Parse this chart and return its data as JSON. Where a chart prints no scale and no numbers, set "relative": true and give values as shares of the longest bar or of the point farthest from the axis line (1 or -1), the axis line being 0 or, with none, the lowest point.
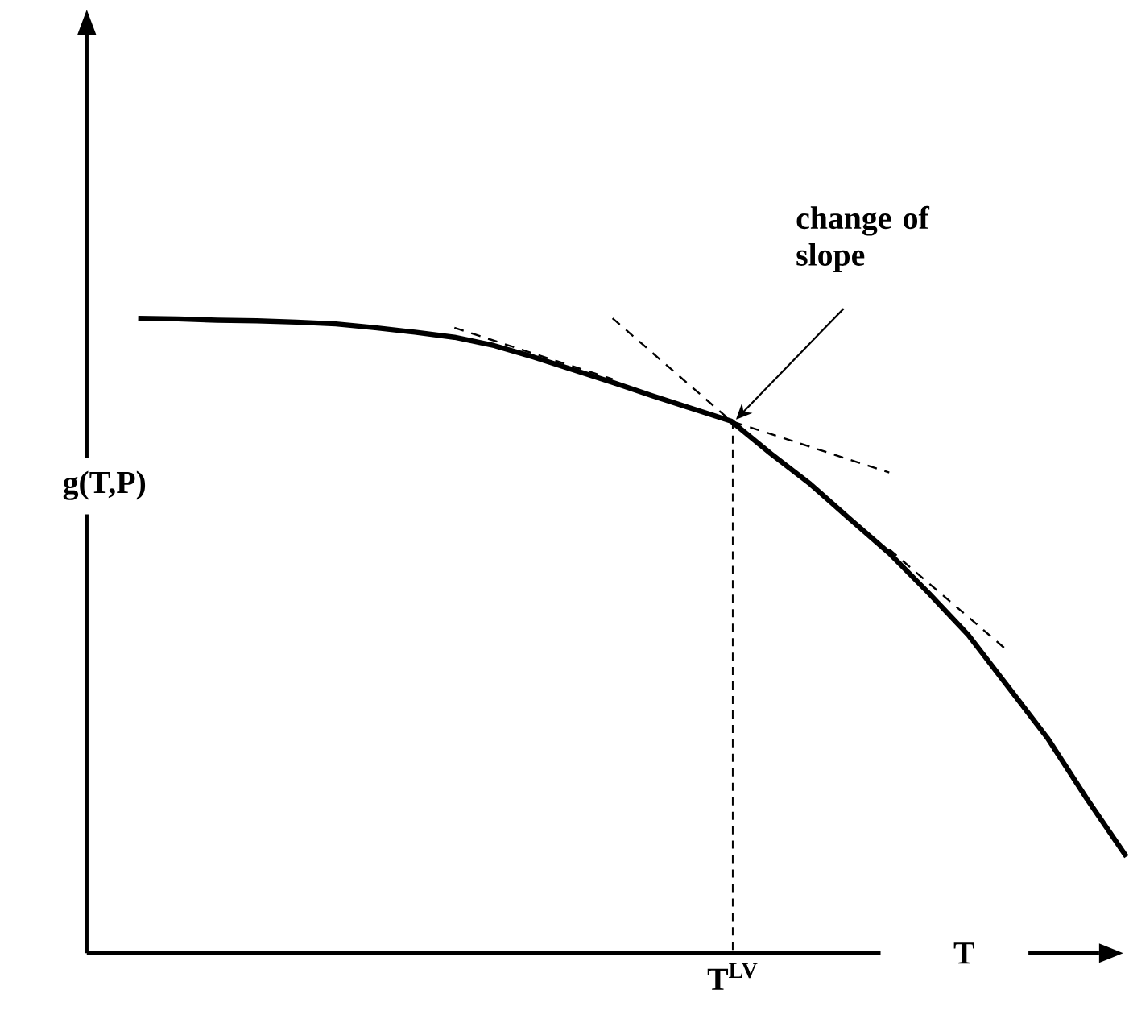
{
  "chart_data": {
    "type": "line",
    "relative": true,
    "xlabel": "T",
    "ylabel": "g(T,P)",
    "categories": [
      null,
      null,
      null,
      null,
      null,
      null,
      null,
      null,
      null,
      null,
      null,
      null,
      null,
      null,
      null,
      null,
      null,
      null,
      null,
      null,
      null,
      null,
      null,
      null,
      null,
      null
    ],
    "series": [
      {
        "color": "#000000",
        "line_style": "solid",
        "values": [
          1.0,
          0.999,
          0.997,
          0.996,
          0.994,
          0.991,
          0.985,
          0.978,
          0.97,
          0.957,
          0.939,
          0.919,
          0.899,
          0.878,
          0.858,
          0.838,
          0.787,
          0.739,
          0.684,
          0.63,
          0.567,
          0.501,
          0.42,
          0.339,
          0.243,
          0.152
        ]
      },
      {
        "color": "#000000",
        "line_style": "dashed",
        "values": [
          null,
          null,
          null,
          null,
          null,
          null,
          null,
          null,
          0.985,
          null,
          null,
          null,
          0.904,
          null,
          null,
          null,
          null,
          null,
          null,
          null,
          null,
          null,
          null,
          null,
          null,
          null
        ]
      },
      {
        "color": "#000000",
        "line_style": "dashed",
        "values": [
          null,
          null,
          null,
          null,
          null,
          null,
          null,
          null,
          null,
          null,
          null,
          null,
          1.0,
          null,
          null,
          0.838,
          null,
          null,
          null,
          0.757,
          null,
          null,
          null,
          null,
          null,
          null
        ]
      },
      {
        "color": "#000000",
        "line_style": "dashed",
        "values": [
          null,
          null,
          null,
          null,
          null,
          null,
          null,
          null,
          null,
          null,
          null,
          null,
          null,
          null,
          null,
          null,
          null,
          null,
          null,
          0.636,
          null,
          null,
          0.476,
          null,
          null,
          null
        ]
      }
    ],
    "annotations": [
      "change of slope",
      "T$^{LV}$"
    ]
  }
}
